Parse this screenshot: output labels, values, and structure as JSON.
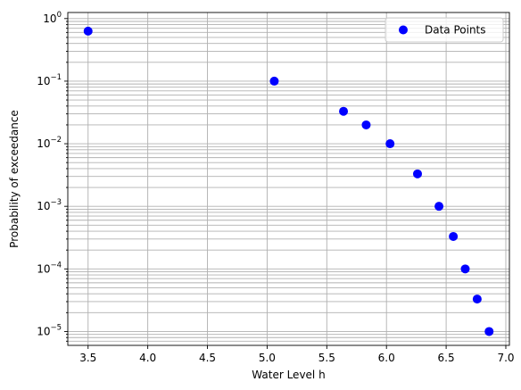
{
  "chart_data": {
    "type": "scatter",
    "title": "",
    "xlabel": "Water Level h",
    "ylabel": "Probability of exceedance",
    "xscale": "linear",
    "yscale": "log",
    "xlim": [
      3.33,
      7.03
    ],
    "ylim": [
      6e-06,
      1.25
    ],
    "x_ticks": [
      3.5,
      4.0,
      4.5,
      5.0,
      5.5,
      6.0,
      6.5,
      7.0
    ],
    "x_tick_labels": [
      "3.5",
      "4.0",
      "4.5",
      "5.0",
      "5.5",
      "6.0",
      "6.5",
      "7.0"
    ],
    "y_ticks": [
      1e-05,
      0.0001,
      0.001,
      0.01,
      0.1,
      1
    ],
    "y_tick_labels": [
      {
        "base": "10",
        "exp": "−5"
      },
      {
        "base": "10",
        "exp": "−4"
      },
      {
        "base": "10",
        "exp": "−3"
      },
      {
        "base": "10",
        "exp": "−2"
      },
      {
        "base": "10",
        "exp": "−1"
      },
      {
        "base": "10",
        "exp": "0"
      }
    ],
    "grid": true,
    "grid_minor": true,
    "legend": {
      "placement": "top-right",
      "entries": [
        "Data Points"
      ]
    },
    "series": [
      {
        "name": "Data Points",
        "color": "#0000ff",
        "marker": "circle",
        "points": [
          {
            "x": 3.5,
            "y": 0.63
          },
          {
            "x": 5.06,
            "y": 0.1
          },
          {
            "x": 5.64,
            "y": 0.033
          },
          {
            "x": 5.83,
            "y": 0.02
          },
          {
            "x": 6.03,
            "y": 0.01
          },
          {
            "x": 6.26,
            "y": 0.0033
          },
          {
            "x": 6.44,
            "y": 0.001
          },
          {
            "x": 6.56,
            "y": 0.00033
          },
          {
            "x": 6.66,
            "y": 0.0001
          },
          {
            "x": 6.76,
            "y": 3.3e-05
          },
          {
            "x": 6.86,
            "y": 1e-05
          }
        ]
      }
    ]
  }
}
